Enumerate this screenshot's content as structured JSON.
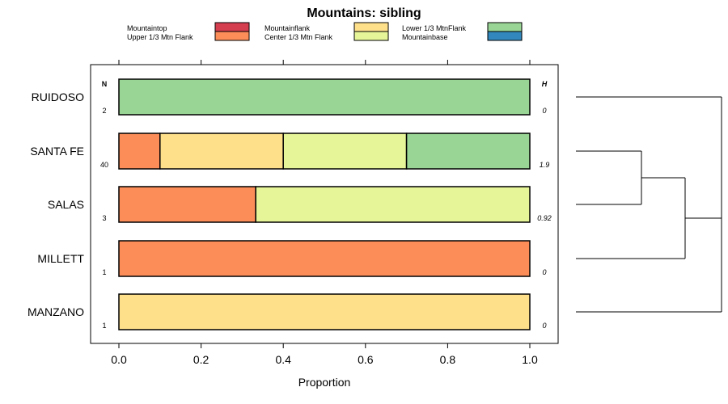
{
  "chart_data": {
    "type": "bar",
    "orientation": "horizontal",
    "stacked": true,
    "title": "Mountains: sibling",
    "xlabel": "Proportion",
    "ylabel": "",
    "xlim": [
      0,
      1
    ],
    "xticks": [
      0,
      0.2,
      0.4,
      0.6,
      0.8,
      1
    ],
    "xtick_labels": [
      "0.0",
      "0.2",
      "0.4",
      "0.6",
      "0.8",
      "1.0"
    ],
    "grid": false,
    "legend_position": "top",
    "n_header": "N",
    "h_header": "H",
    "legend": [
      {
        "name": "Mountaintop",
        "color": "#d53e4f"
      },
      {
        "name": "Upper 1/3 Mtn Flank",
        "color": "#fc8d59"
      },
      {
        "name": "Mountainflank",
        "color": "#fee08b"
      },
      {
        "name": "Center 1/3 Mtn Flank",
        "color": "#e6f598"
      },
      {
        "name": "Lower 1/3 MtnFlank",
        "color": "#99d594"
      },
      {
        "name": "Mountainbase",
        "color": "#3288bd"
      }
    ],
    "categories": [
      "RUIDOSO",
      "SANTA FE",
      "SALAS",
      "MILLETT",
      "MANZANO"
    ],
    "rows": [
      {
        "label": "RUIDOSO",
        "n": "2",
        "h": "0",
        "segments": [
          {
            "series": "Lower 1/3 MtnFlank",
            "value": 1.0
          }
        ]
      },
      {
        "label": "SANTA FE",
        "n": "40",
        "h": "1.9",
        "segments": [
          {
            "series": "Upper 1/3 Mtn Flank",
            "value": 0.1
          },
          {
            "series": "Mountainflank",
            "value": 0.3
          },
          {
            "series": "Center 1/3 Mtn Flank",
            "value": 0.3
          },
          {
            "series": "Lower 1/3 MtnFlank",
            "value": 0.3
          }
        ]
      },
      {
        "label": "SALAS",
        "n": "3",
        "h": "0.92",
        "segments": [
          {
            "series": "Upper 1/3 Mtn Flank",
            "value": 0.333
          },
          {
            "series": "Center 1/3 Mtn Flank",
            "value": 0.667
          }
        ]
      },
      {
        "label": "MILLETT",
        "n": "1",
        "h": "0",
        "segments": [
          {
            "series": "Upper 1/3 Mtn Flank",
            "value": 1.0
          }
        ]
      },
      {
        "label": "MANZANO",
        "n": "1",
        "h": "0",
        "segments": [
          {
            "series": "Mountainflank",
            "value": 1.0
          }
        ]
      }
    ],
    "dendrogram": {
      "merges": [
        {
          "left": "SANTA FE",
          "right": "SALAS",
          "height": 0.45
        },
        {
          "left": "merge-1",
          "right": "MILLETT",
          "height": 0.75
        },
        {
          "left": "RUIDOSO",
          "right": "merge-2",
          "height": 1.0
        },
        {
          "left": "merge-3",
          "right": "MANZANO",
          "height": 1.0
        }
      ]
    }
  }
}
